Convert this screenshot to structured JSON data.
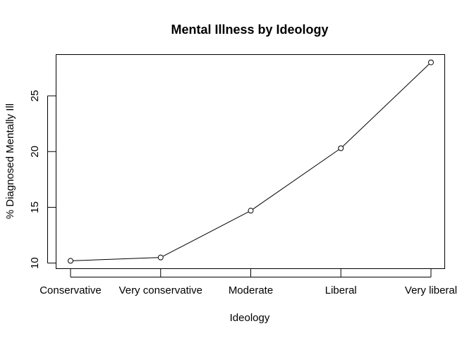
{
  "chart_data": {
    "type": "line",
    "title": "Mental Illness by Ideology",
    "xlabel": "Ideology",
    "ylabel": "% Diagnosed Mentally Ill",
    "categories": [
      "Conservative",
      "Very conservative",
      "Moderate",
      "Liberal",
      "Very liberal"
    ],
    "values": [
      10.2,
      10.5,
      14.7,
      20.3,
      28.0
    ],
    "yticks": [
      10,
      15,
      20,
      25
    ],
    "ylim": [
      9.5,
      28.7
    ],
    "markers": "open-circle",
    "grid": false,
    "legend": "none"
  }
}
